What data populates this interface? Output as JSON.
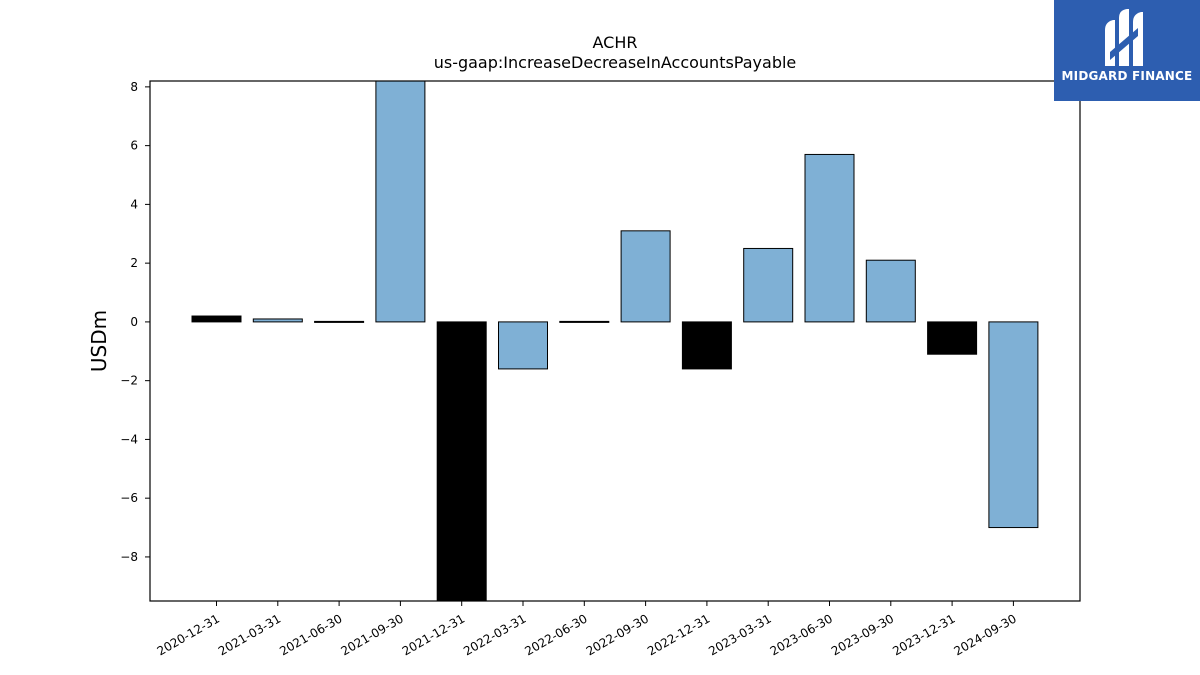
{
  "chart_data": {
    "type": "bar",
    "title": "ACHR",
    "subtitle": "us-gaap:IncreaseDecreaseInAccountsPayable",
    "xlabel": "",
    "ylabel": "USDm",
    "categories": [
      "2020-12-31",
      "2021-03-31",
      "2021-06-30",
      "2021-09-30",
      "2021-12-31",
      "2022-03-31",
      "2022-06-30",
      "2022-09-30",
      "2022-12-31",
      "2023-03-31",
      "2023-06-30",
      "2023-09-30",
      "2023-12-31",
      "2024-09-30"
    ],
    "values": [
      0.2,
      0.1,
      -0.03,
      8.3,
      -9.6,
      -1.6,
      -0.02,
      3.1,
      -1.6,
      2.5,
      5.7,
      2.1,
      -1.1,
      -7.0
    ],
    "bar_colors": [
      "#000000",
      "#7fb0d5",
      "#000000",
      "#7fb0d5",
      "#000000",
      "#7fb0d5",
      "#000000",
      "#7fb0d5",
      "#000000",
      "#7fb0d5",
      "#7fb0d5",
      "#7fb0d5",
      "#000000",
      "#7fb0d5"
    ],
    "ylim": [
      -9.5,
      8.2
    ],
    "yticks": [
      -8,
      -6,
      -4,
      -2,
      0,
      2,
      4,
      6,
      8
    ],
    "ytick_labels": [
      "−8",
      "−6",
      "−4",
      "−2",
      "0",
      "2",
      "4",
      "6",
      "8"
    ],
    "grid": false,
    "legend": "none"
  },
  "logo": {
    "text": "MIDGARD FINANCE",
    "background": "#2d5eb0",
    "icon": "midgard-logo-icon"
  }
}
